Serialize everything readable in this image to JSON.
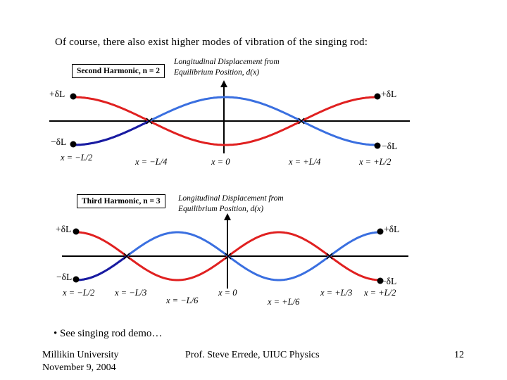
{
  "intro": "Of course, there also exist higher modes of vibration of the singing rod:",
  "panels": [
    {
      "harmonic_label": "Second Harmonic, n = 2",
      "caption_line1": "Longitudinal Displacement from",
      "caption_line2": "Equilibrium Position, d(x)",
      "plus_left": "+δL",
      "plus_right": "+δL",
      "minus_left": "−δL",
      "minus_right": "−δL",
      "x_labels": [
        "x = −L/2",
        "x = −L/4",
        "x = 0",
        "x = +L/4",
        "x = +L/2"
      ],
      "n": 2
    },
    {
      "harmonic_label": "Third Harmonic, n = 3",
      "caption_line1": "Longitudinal Displacement from",
      "caption_line2": "Equilibrium Position, d(x)",
      "plus_left": "+δL",
      "plus_right": "+δL",
      "minus_left": "−δL",
      "minus_right": "−δL",
      "x_labels": [
        "x = −L/2",
        "x = −L/3",
        "x = −L/6",
        "x = 0",
        "x = +L/6",
        "x = +L/3",
        "x = +L/2"
      ],
      "n": 3
    }
  ],
  "bullet": "• See singing rod demo…",
  "footer": {
    "left_line1": "Millikin University",
    "left_line2": "November 9, 2004",
    "center": "Prof. Steve Errede, UIUC Physics",
    "page": "12"
  },
  "colors": {
    "red": "#e02020",
    "blue": "#3a6fe0",
    "dark_blue": "#1a1aa0",
    "axis": "#000000"
  }
}
